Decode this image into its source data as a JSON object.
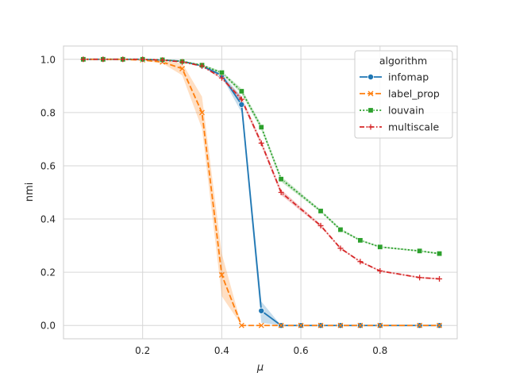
{
  "chart_data": {
    "type": "line",
    "xlabel": "μ",
    "ylabel": "nmi",
    "xlim": [
      0.0,
      0.995
    ],
    "ylim": [
      -0.05,
      1.05
    ],
    "xticks": [
      0.2,
      0.4,
      0.6,
      0.8
    ],
    "xtick_labels": [
      "0.2",
      "0.4",
      "0.6",
      "0.8"
    ],
    "yticks": [
      0.0,
      0.2,
      0.4,
      0.6,
      0.8,
      1.0
    ],
    "ytick_labels": [
      "0.0",
      "0.2",
      "0.4",
      "0.6",
      "0.8",
      "1.0"
    ],
    "grid": true,
    "legend": {
      "title": "algorithm",
      "position": "top-right"
    },
    "x": [
      0.05,
      0.1,
      0.15,
      0.2,
      0.25,
      0.3,
      0.35,
      0.4,
      0.45,
      0.5,
      0.55,
      0.6,
      0.65,
      0.7,
      0.75,
      0.8,
      0.9,
      0.95
    ],
    "series": [
      {
        "name": "infomap",
        "color": "#1f77b4",
        "dash": "solid",
        "marker": "circle",
        "values": [
          1.0,
          1.0,
          1.0,
          1.0,
          0.997,
          0.993,
          0.975,
          0.94,
          0.83,
          0.055,
          0.0,
          0.0,
          0.0,
          0.0,
          0.0,
          0.0,
          0.0,
          0.0
        ],
        "lower": [
          1.0,
          1.0,
          1.0,
          1.0,
          0.996,
          0.991,
          0.972,
          0.935,
          0.8,
          0.01,
          0.0,
          0.0,
          0.0,
          0.0,
          0.0,
          0.0,
          0.0,
          0.0
        ],
        "upper": [
          1.0,
          1.0,
          1.0,
          1.0,
          0.998,
          0.995,
          0.978,
          0.945,
          0.86,
          0.09,
          0.0,
          0.0,
          0.0,
          0.0,
          0.0,
          0.0,
          0.0,
          0.0
        ]
      },
      {
        "name": "label_prop",
        "color": "#ff7f0e",
        "dash": "dashed",
        "marker": "x",
        "values": [
          1.0,
          1.0,
          1.0,
          0.997,
          0.99,
          0.965,
          0.8,
          0.19,
          0.0,
          0.0,
          0.0,
          0.0,
          0.0,
          0.0,
          0.0,
          0.0,
          0.0,
          0.0
        ],
        "lower": [
          1.0,
          1.0,
          1.0,
          0.995,
          0.985,
          0.94,
          0.74,
          0.11,
          0.0,
          0.0,
          0.0,
          0.0,
          0.0,
          0.0,
          0.0,
          0.0,
          0.0,
          0.0
        ],
        "upper": [
          1.0,
          1.0,
          1.0,
          0.999,
          0.995,
          0.985,
          0.86,
          0.27,
          0.0,
          0.0,
          0.0,
          0.0,
          0.0,
          0.0,
          0.0,
          0.0,
          0.0,
          0.0
        ]
      },
      {
        "name": "louvain",
        "color": "#2ca02c",
        "dash": "dotted",
        "marker": "square",
        "values": [
          1.0,
          1.0,
          1.0,
          1.0,
          0.998,
          0.992,
          0.978,
          0.95,
          0.88,
          0.745,
          0.55,
          null,
          0.43,
          0.36,
          0.32,
          0.295,
          0.28,
          0.27
        ],
        "lower": [
          1.0,
          1.0,
          1.0,
          1.0,
          0.997,
          0.99,
          0.975,
          0.945,
          0.87,
          0.735,
          0.54,
          null,
          0.425,
          0.355,
          0.317,
          0.292,
          0.277,
          0.267
        ],
        "upper": [
          1.0,
          1.0,
          1.0,
          1.0,
          0.999,
          0.994,
          0.981,
          0.955,
          0.89,
          0.755,
          0.56,
          null,
          0.435,
          0.365,
          0.323,
          0.298,
          0.283,
          0.273
        ]
      },
      {
        "name": "multiscale",
        "color": "#d62728",
        "dash": "dashdot",
        "marker": "plus",
        "values": [
          1.0,
          1.0,
          1.0,
          1.0,
          0.997,
          0.99,
          0.975,
          0.93,
          0.85,
          0.685,
          0.5,
          null,
          0.375,
          0.29,
          0.24,
          0.205,
          0.18,
          0.175
        ],
        "lower": [
          1.0,
          1.0,
          1.0,
          1.0,
          0.996,
          0.988,
          0.972,
          0.925,
          0.84,
          0.675,
          0.49,
          null,
          0.37,
          0.286,
          0.237,
          0.202,
          0.177,
          0.172
        ],
        "upper": [
          1.0,
          1.0,
          1.0,
          1.0,
          0.998,
          0.992,
          0.978,
          0.935,
          0.86,
          0.695,
          0.51,
          null,
          0.38,
          0.294,
          0.243,
          0.208,
          0.183,
          0.178
        ]
      }
    ]
  }
}
